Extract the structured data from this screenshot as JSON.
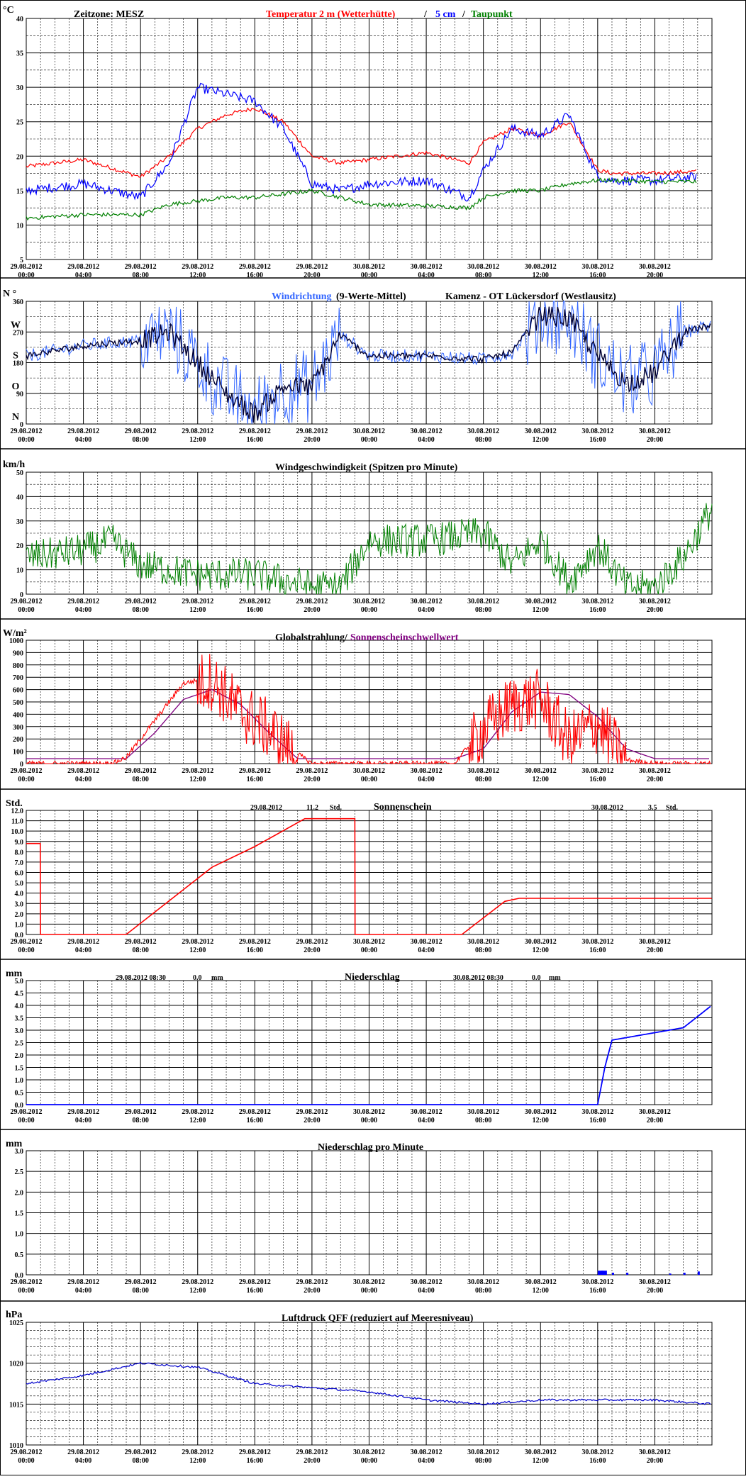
{
  "x_tick_labels": [
    [
      "29.08.2012",
      "00:00"
    ],
    [
      "29.08.2012",
      "04:00"
    ],
    [
      "29.08.2012",
      "08:00"
    ],
    [
      "29.08.2012",
      "12:00"
    ],
    [
      "29.08.2012",
      "16:00"
    ],
    [
      "29.08.2012",
      "20:00"
    ],
    [
      "30.08.2012",
      "00:00"
    ],
    [
      "30.08.2012",
      "04:00"
    ],
    [
      "30.08.2012",
      "08:00"
    ],
    [
      "30.08.2012",
      "12:00"
    ],
    [
      "30.08.2012",
      "16:00"
    ],
    [
      "30.08.2012",
      "20:00"
    ]
  ],
  "panels": {
    "temp": {
      "unit": "°C",
      "zone": "Zeitzone: MESZ",
      "title_red": "Temperatur 2 m (Wetterhütte)",
      "title_sep": "/",
      "title_blue": "5 cm",
      "title_sep2": "/",
      "title_green": "Taupunkt",
      "yticks": [
        "40",
        "35",
        "30",
        "25",
        "20",
        "15",
        "10",
        "5"
      ]
    },
    "dir": {
      "unit": "N °",
      "title_blue": "Windrichtung",
      "title_black": "(9-Werte-Mittel)",
      "location": "Kamenz - OT Lückersdorf (Westlausitz)",
      "yticks": [
        "360",
        "270",
        "180",
        "90",
        "0"
      ],
      "compass": [
        "W",
        "S",
        "O",
        "N"
      ]
    },
    "wind": {
      "unit": "km/h",
      "title": "Windgeschwindigkeit (Spitzen pro Minute)",
      "yticks": [
        "50",
        "40",
        "30",
        "20",
        "10",
        "0"
      ]
    },
    "rad": {
      "unit": "W/m²",
      "title_black": "Globalstrahlung/",
      "title_purple": "Sonnenscheinschwellwert",
      "yticks": [
        "1000",
        "900",
        "800",
        "700",
        "600",
        "500",
        "400",
        "300",
        "200",
        "100",
        "0"
      ]
    },
    "sun": {
      "unit": "Std.",
      "title": "Sonnenschein",
      "day1": {
        "date": "29.08.2012",
        "value": "11.2",
        "unit": "Std."
      },
      "day2": {
        "date": "30.08.2012",
        "value": "3.5",
        "unit": "Std."
      },
      "yticks": [
        "12.0",
        "11.0",
        "10.0",
        "9.0",
        "8.0",
        "7.0",
        "6.0",
        "5.0",
        "4.0",
        "3.0",
        "2.0",
        "1.0",
        "0.0"
      ]
    },
    "rain": {
      "unit": "mm",
      "title": "Niederschlag",
      "day1": {
        "label": "29.08.2012 08:30",
        "value": "0.0",
        "unit": "mm"
      },
      "day2": {
        "label": "30.08.2012 08:30",
        "value": "0.0",
        "unit": "mm"
      },
      "yticks": [
        "5.0",
        "4.5",
        "4.0",
        "3.5",
        "3.0",
        "2.5",
        "2.0",
        "1.5",
        "1.0",
        "0.5",
        "0.0"
      ]
    },
    "rainmin": {
      "unit": "mm",
      "title": "Niederschlag pro Minute",
      "yticks": [
        "3.0",
        "2.5",
        "2.0",
        "1.5",
        "1.0",
        "0.5",
        "0.0"
      ]
    },
    "press": {
      "unit": "hPa",
      "title": "Luftdruck QFF (reduziert auf Meeresniveau)",
      "yticks": [
        "1025",
        "1020",
        "1015",
        "1010"
      ]
    }
  },
  "colors": {
    "red": "#ff0000",
    "blue": "#0000ff",
    "green": "#008000",
    "purple": "#800080",
    "winddir": "#3366ff",
    "press": "#0000cc",
    "rain": "#0000ff"
  },
  "chart_data": [
    {
      "type": "line",
      "title": "Temperatur 2 m (Wetterhütte) / 5 cm / Taupunkt",
      "ylabel": "°C",
      "ylim": [
        5,
        40
      ],
      "x": [
        "29.08 00:00",
        "29.08 04:00",
        "29.08 08:00",
        "29.08 10:00",
        "29.08 12:00",
        "29.08 14:00",
        "29.08 16:00",
        "29.08 18:00",
        "29.08 20:00",
        "29.08 22:00",
        "30.08 00:00",
        "30.08 04:00",
        "30.08 07:00",
        "30.08 08:00",
        "30.08 10:00",
        "30.08 12:00",
        "30.08 14:00",
        "30.08 16:00",
        "30.08 17:00",
        "30.08 20:00",
        "30.08 23:00"
      ],
      "series": [
        {
          "name": "Temperatur 2 m (Wetterhütte)",
          "values": [
            18.5,
            19.5,
            17,
            20,
            24,
            26,
            27,
            25,
            20,
            19,
            19.5,
            20.5,
            19,
            22,
            24,
            23,
            25,
            18,
            17.5,
            17.5,
            17.8
          ]
        },
        {
          "name": "5 cm",
          "values": [
            15,
            16,
            14,
            19,
            30,
            29,
            28,
            24,
            16,
            15,
            16,
            16.5,
            14,
            18,
            24,
            23,
            26,
            17,
            16.5,
            16.5,
            17
          ]
        },
        {
          "name": "Taupunkt",
          "values": [
            11,
            11.5,
            11.5,
            13,
            13.5,
            14,
            14,
            14.5,
            15,
            14,
            13,
            12.8,
            12.5,
            14,
            15,
            15,
            16,
            16.5,
            16.5,
            16.3,
            16.3
          ]
        }
      ]
    },
    {
      "type": "scatter",
      "title": "Windrichtung (9-Werte-Mittel)",
      "ylabel": "°",
      "ylim": [
        0,
        360
      ],
      "x": [
        "29.08 00:00",
        "29.08 04:00",
        "29.08 08:00",
        "29.08 10:00",
        "29.08 12:00",
        "29.08 14:00",
        "29.08 16:00",
        "29.08 18:00",
        "29.08 20:00",
        "29.08 22:00",
        "30.08 00:00",
        "30.08 04:00",
        "30.08 08:00",
        "30.08 10:00",
        "30.08 12:00",
        "30.08 14:00",
        "30.08 16:00",
        "30.08 18:00",
        "30.08 20:00",
        "30.08 22:00",
        "30.08 23:59"
      ],
      "series": [
        {
          "name": "Windrichtung",
          "values": [
            200,
            230,
            245,
            270,
            180,
            90,
            30,
            110,
            110,
            260,
            200,
            200,
            190,
            210,
            320,
            310,
            200,
            120,
            150,
            270,
            290
          ]
        }
      ]
    },
    {
      "type": "line",
      "title": "Windgeschwindigkeit (Spitzen pro Minute)",
      "ylabel": "km/h",
      "ylim": [
        0,
        50
      ],
      "x": [
        "29.08 00:00",
        "29.08 04:00",
        "29.08 06:00",
        "29.08 08:00",
        "29.08 12:00",
        "29.08 16:00",
        "29.08 20:00",
        "29.08 22:00",
        "30.08 00:00",
        "30.08 04:00",
        "30.08 08:00",
        "30.08 10:00",
        "30.08 12:00",
        "30.08 14:00",
        "30.08 16:00",
        "30.08 18:00",
        "30.08 20:00",
        "30.08 22:00",
        "30.08 23:59"
      ],
      "series": [
        {
          "name": "Windgeschwindigkeit",
          "values": [
            15,
            18,
            22,
            12,
            8,
            8,
            3,
            3,
            22,
            22,
            25,
            12,
            22,
            5,
            20,
            3,
            3,
            15,
            35
          ]
        }
      ]
    },
    {
      "type": "line",
      "title": "Globalstrahlung/Sonnenscheinschwellwert",
      "ylabel": "W/m²",
      "ylim": [
        0,
        1000
      ],
      "x": [
        "29.08 00:00",
        "29.08 06:00",
        "29.08 07:00",
        "29.08 09:00",
        "29.08 11:00",
        "29.08 13:00",
        "29.08 15:00",
        "29.08 17:00",
        "29.08 19:00",
        "29.08 20:00",
        "30.08 00:00",
        "30.08 06:00",
        "30.08 08:00",
        "30.08 10:00",
        "30.08 12:00",
        "30.08 14:00",
        "30.08 16:00",
        "30.08 18:00",
        "30.08 20:00",
        "30.08 23:59"
      ],
      "series": [
        {
          "name": "Globalstrahlung",
          "values": [
            0,
            0,
            50,
            350,
            650,
            700,
            450,
            300,
            80,
            0,
            0,
            0,
            300,
            500,
            550,
            200,
            350,
            30,
            0,
            0
          ]
        },
        {
          "name": "Sonnenscheinschwellwert",
          "values": [
            40,
            40,
            40,
            250,
            520,
            600,
            480,
            250,
            40,
            40,
            40,
            40,
            120,
            420,
            580,
            560,
            380,
            120,
            40,
            40
          ]
        }
      ]
    },
    {
      "type": "line",
      "title": "Sonnenschein",
      "ylabel": "Std.",
      "ylim": [
        0,
        12
      ],
      "x": [
        "29.08 00:00",
        "29.08 00:59",
        "29.08 01:00",
        "29.08 07:00",
        "29.08 13:00",
        "29.08 16:00",
        "29.08 19:30",
        "29.08 20:00",
        "29.08 23:00",
        "29.08 23:01",
        "30.08 06:30",
        "30.08 09:30",
        "30.08 10:30",
        "30.08 23:59"
      ],
      "series": [
        {
          "name": "Sonnenschein",
          "values": [
            8.8,
            8.8,
            0,
            0,
            6.5,
            8.5,
            11.2,
            11.2,
            11.2,
            0,
            0,
            3.2,
            3.5,
            3.5
          ]
        }
      ]
    },
    {
      "type": "line",
      "title": "Niederschlag",
      "ylabel": "mm",
      "ylim": [
        0,
        5
      ],
      "x": [
        "29.08 00:00",
        "30.08 16:00",
        "30.08 16:30",
        "30.08 17:00",
        "30.08 18:00",
        "30.08 20:00",
        "30.08 22:00",
        "30.08 23:59"
      ],
      "series": [
        {
          "name": "Niederschlag",
          "values": [
            0,
            0,
            1.5,
            2.6,
            2.7,
            2.9,
            3.1,
            4.0
          ]
        }
      ]
    },
    {
      "type": "bar",
      "title": "Niederschlag pro Minute",
      "ylabel": "mm",
      "ylim": [
        0,
        3
      ],
      "categories": [
        "30.08 16:00",
        "30.08 16:15",
        "30.08 17:00",
        "30.08 18:00",
        "30.08 21:00",
        "30.08 22:00",
        "30.08 23:00"
      ],
      "values": [
        0.1,
        0.1,
        0.05,
        0.05,
        0.03,
        0.05,
        0.08
      ]
    },
    {
      "type": "line",
      "title": "Luftdruck QFF (reduziert auf Meeresniveau)",
      "ylabel": "hPa",
      "ylim": [
        1010,
        1025
      ],
      "x": [
        "29.08 00:00",
        "29.08 04:00",
        "29.08 08:00",
        "29.08 12:00",
        "29.08 16:00",
        "29.08 20:00",
        "30.08 00:00",
        "30.08 04:00",
        "30.08 08:00",
        "30.08 12:00",
        "30.08 16:00",
        "30.08 20:00",
        "30.08 23:59"
      ],
      "series": [
        {
          "name": "Luftdruck QFF",
          "values": [
            1017.5,
            1018.5,
            1020,
            1019.5,
            1017.5,
            1017,
            1016.5,
            1015.5,
            1015,
            1015.5,
            1015.5,
            1015.5,
            1015
          ]
        }
      ]
    }
  ]
}
